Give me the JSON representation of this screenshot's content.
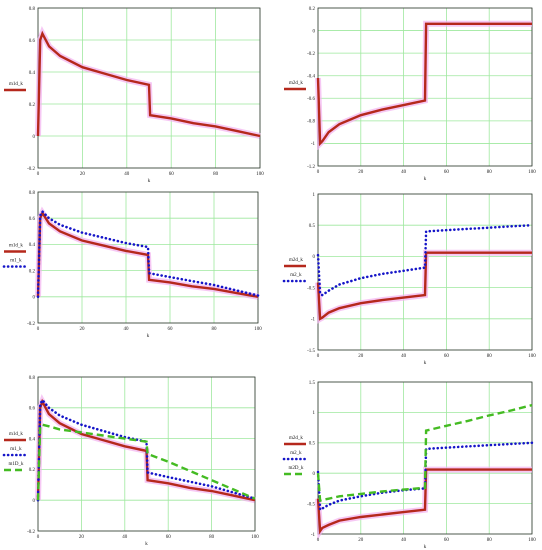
{
  "colors": {
    "red": "#b5281c",
    "blue": "#1515c8",
    "green": "#44bb22",
    "grid": "#9ee89e",
    "pink": "#f2b0f0"
  },
  "chart_data": [
    {
      "type": "line",
      "xlabel": "k",
      "xlim": [
        0,
        100
      ],
      "ylim": [
        -0.2,
        0.8
      ],
      "xticks": [
        "0",
        "20",
        "40",
        "60",
        "80",
        "100"
      ],
      "yticks": [
        "-0.2",
        "0",
        "0.2",
        "0.4",
        "0.6",
        "0.8"
      ],
      "series": [
        {
          "name": "m1d_k",
          "color": "red",
          "style": "solid",
          "x": [
            0,
            1,
            2,
            5,
            10,
            20,
            30,
            40,
            50,
            50.5,
            60,
            70,
            80,
            90,
            100
          ],
          "y": [
            0,
            0.6,
            0.64,
            0.56,
            0.5,
            0.43,
            0.39,
            0.35,
            0.32,
            0.13,
            0.11,
            0.08,
            0.06,
            0.03,
            0.0
          ]
        }
      ]
    },
    {
      "type": "line",
      "xlabel": "k",
      "xlim": [
        0,
        100
      ],
      "ylim": [
        -1.2,
        0.2
      ],
      "xticks": [
        "0",
        "20",
        "40",
        "60",
        "80",
        "100"
      ],
      "yticks": [
        "-1.2",
        "-1",
        "-0.8",
        "-0.6",
        "-0.4",
        "-0.2",
        "0",
        "0.2"
      ],
      "series": [
        {
          "name": "m2d_k",
          "color": "red",
          "style": "solid",
          "x": [
            0,
            1,
            2,
            5,
            10,
            20,
            30,
            40,
            50,
            50.5,
            60,
            70,
            80,
            90,
            100
          ],
          "y": [
            -0.42,
            -1.0,
            -0.98,
            -0.9,
            -0.83,
            -0.75,
            -0.7,
            -0.66,
            -0.62,
            0.06,
            0.06,
            0.06,
            0.06,
            0.06,
            0.06
          ]
        }
      ]
    },
    {
      "type": "line",
      "xlabel": "k",
      "xlim": [
        0,
        100
      ],
      "ylim": [
        -0.2,
        0.8
      ],
      "xticks": [
        "0",
        "20",
        "40",
        "60",
        "80",
        "100"
      ],
      "yticks": [
        "-0.2",
        "0",
        "0.2",
        "0.4",
        "0.6",
        "0.8"
      ],
      "series": [
        {
          "name": "m1d_k",
          "color": "red",
          "style": "solid",
          "x": [
            0,
            1,
            2,
            5,
            10,
            20,
            30,
            40,
            50,
            50.5,
            60,
            70,
            80,
            90,
            100
          ],
          "y": [
            0,
            0.6,
            0.64,
            0.56,
            0.5,
            0.43,
            0.39,
            0.35,
            0.32,
            0.13,
            0.11,
            0.08,
            0.06,
            0.03,
            0.0
          ]
        },
        {
          "name": "m1_k",
          "color": "blue",
          "style": "dotted",
          "x": [
            0,
            1,
            2,
            5,
            10,
            20,
            30,
            40,
            50,
            50.5,
            60,
            70,
            80,
            90,
            100
          ],
          "y": [
            0,
            0.62,
            0.65,
            0.6,
            0.55,
            0.49,
            0.45,
            0.41,
            0.38,
            0.18,
            0.15,
            0.12,
            0.09,
            0.05,
            0.01
          ]
        }
      ]
    },
    {
      "type": "line",
      "xlabel": "k",
      "xlim": [
        0,
        100
      ],
      "ylim": [
        -1.5,
        1
      ],
      "xticks": [
        "0",
        "20",
        "40",
        "60",
        "80",
        "100"
      ],
      "yticks": [
        "-1.5",
        "-1",
        "-0.5",
        "0",
        "0.5",
        "1"
      ],
      "series": [
        {
          "name": "m2d_k",
          "color": "red",
          "style": "solid",
          "x": [
            0,
            1,
            2,
            5,
            10,
            20,
            30,
            40,
            50,
            50.5,
            60,
            70,
            80,
            90,
            100
          ],
          "y": [
            -0.42,
            -1.0,
            -0.98,
            -0.9,
            -0.83,
            -0.75,
            -0.7,
            -0.66,
            -0.62,
            0.06,
            0.06,
            0.06,
            0.06,
            0.06,
            0.06
          ]
        },
        {
          "name": "m2_k",
          "color": "blue",
          "style": "dotted",
          "x": [
            0,
            1,
            2,
            5,
            10,
            20,
            30,
            40,
            50,
            50.5,
            60,
            70,
            80,
            90,
            100
          ],
          "y": [
            0.02,
            -0.6,
            -0.62,
            -0.55,
            -0.45,
            -0.35,
            -0.28,
            -0.23,
            -0.18,
            0.4,
            0.42,
            0.44,
            0.46,
            0.48,
            0.5
          ]
        }
      ]
    },
    {
      "type": "line",
      "xlabel": "k",
      "xlim": [
        0,
        100
      ],
      "ylim": [
        -0.2,
        0.8
      ],
      "xticks": [
        "0",
        "20",
        "40",
        "60",
        "80",
        "100"
      ],
      "yticks": [
        "-0.2",
        "0",
        "0.2",
        "0.4",
        "0.6",
        "0.8"
      ],
      "series": [
        {
          "name": "m1d_k",
          "color": "red",
          "style": "solid",
          "x": [
            0,
            1,
            2,
            5,
            10,
            20,
            30,
            40,
            50,
            50.5,
            60,
            70,
            80,
            90,
            100
          ],
          "y": [
            0,
            0.6,
            0.64,
            0.56,
            0.5,
            0.43,
            0.39,
            0.35,
            0.32,
            0.13,
            0.11,
            0.08,
            0.06,
            0.03,
            0.0
          ]
        },
        {
          "name": "m1_k",
          "color": "blue",
          "style": "dotted",
          "x": [
            0,
            1,
            2,
            5,
            10,
            20,
            30,
            40,
            50,
            50.5,
            60,
            70,
            80,
            90,
            100
          ],
          "y": [
            0,
            0.62,
            0.65,
            0.6,
            0.55,
            0.49,
            0.45,
            0.41,
            0.38,
            0.18,
            0.15,
            0.12,
            0.09,
            0.05,
            0.01
          ]
        },
        {
          "name": "m1D_k",
          "color": "green",
          "style": "dashed",
          "x": [
            0,
            1,
            2,
            5,
            10,
            20,
            30,
            40,
            50,
            50.5,
            60,
            70,
            80,
            90,
            100
          ],
          "y": [
            0,
            0.48,
            0.49,
            0.48,
            0.46,
            0.44,
            0.42,
            0.4,
            0.38,
            0.3,
            0.25,
            0.19,
            0.13,
            0.07,
            0.01
          ]
        }
      ]
    },
    {
      "type": "line",
      "xlabel": "k",
      "xlim": [
        0,
        100
      ],
      "ylim": [
        -1,
        1.5
      ],
      "xticks": [
        "0",
        "20",
        "40",
        "60",
        "80",
        "100"
      ],
      "yticks": [
        "-1",
        "-0.5",
        "0",
        "0.5",
        "1",
        "1.5"
      ],
      "series": [
        {
          "name": "m2d_k",
          "color": "red",
          "style": "solid",
          "x": [
            0,
            1,
            2,
            5,
            10,
            20,
            30,
            40,
            50,
            50.5,
            60,
            70,
            80,
            90,
            100
          ],
          "y": [
            -0.42,
            -0.95,
            -0.9,
            -0.85,
            -0.78,
            -0.72,
            -0.68,
            -0.64,
            -0.6,
            0.06,
            0.06,
            0.06,
            0.06,
            0.06,
            0.06
          ]
        },
        {
          "name": "m2_k",
          "color": "blue",
          "style": "dotted",
          "x": [
            0,
            1,
            2,
            5,
            10,
            20,
            30,
            40,
            50,
            50.5,
            60,
            70,
            80,
            90,
            100
          ],
          "y": [
            0.02,
            -0.6,
            -0.58,
            -0.52,
            -0.45,
            -0.38,
            -0.32,
            -0.28,
            -0.25,
            0.4,
            0.42,
            0.44,
            0.46,
            0.48,
            0.5
          ]
        },
        {
          "name": "m2D_k",
          "color": "green",
          "style": "dashed",
          "x": [
            0,
            1,
            2,
            5,
            10,
            20,
            30,
            40,
            50,
            50.5,
            60,
            70,
            80,
            90,
            100
          ],
          "y": [
            0.0,
            -0.45,
            -0.44,
            -0.42,
            -0.38,
            -0.34,
            -0.3,
            -0.27,
            -0.24,
            0.7,
            0.78,
            0.86,
            0.95,
            1.03,
            1.12
          ]
        }
      ]
    }
  ]
}
